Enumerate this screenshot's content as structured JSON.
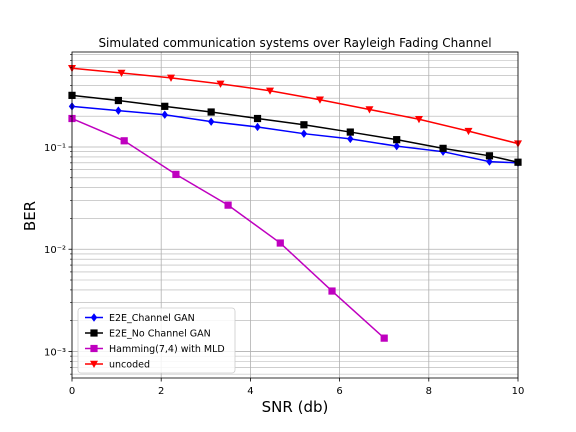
{
  "chart_data": {
    "type": "line",
    "title": "Simulated communication systems over Rayleigh Fading Channel",
    "xlabel": "SNR (db)",
    "ylabel": "BER",
    "xlim": [
      0,
      10
    ],
    "ylim": [
      0.00055,
      0.85
    ],
    "yscale": "log",
    "grid": true,
    "legend_position": "lower-left",
    "x_ticks": [
      0,
      2,
      4,
      6,
      8,
      10
    ],
    "x_tick_labels": [
      "0",
      "2",
      "4",
      "6",
      "8",
      "10"
    ],
    "y_ticks": [
      0.001,
      0.01,
      0.1
    ],
    "y_tick_labels": [
      "10⁻³",
      "10⁻²",
      "10⁻¹"
    ],
    "series": [
      {
        "name": "E2E_Channel GAN",
        "color": "#0000ff",
        "marker": "diamond",
        "x": [
          0,
          1.04,
          2.08,
          3.12,
          4.16,
          5.2,
          6.24,
          7.28,
          8.32,
          9.36,
          10
        ],
        "y": [
          0.25,
          0.227,
          0.207,
          0.177,
          0.157,
          0.135,
          0.12,
          0.102,
          0.09,
          0.072,
          0.07
        ]
      },
      {
        "name": "E2E_No Channel GAN",
        "color": "#000000",
        "marker": "square",
        "x": [
          0,
          1.04,
          2.08,
          3.12,
          4.16,
          5.2,
          6.24,
          7.28,
          8.32,
          9.36,
          10
        ],
        "y": [
          0.32,
          0.285,
          0.25,
          0.22,
          0.19,
          0.165,
          0.14,
          0.118,
          0.097,
          0.082,
          0.071
        ]
      },
      {
        "name": "Hamming(7,4) with MLD",
        "color": "#bf00bf",
        "marker": "square",
        "x": [
          0,
          1.17,
          2.33,
          3.5,
          4.67,
          5.83,
          7.0
        ],
        "y": [
          0.19,
          0.115,
          0.054,
          0.027,
          0.0115,
          0.0039,
          0.00135
        ]
      },
      {
        "name": "uncoded",
        "color": "#ff0000",
        "marker": "triangle-down",
        "x": [
          0,
          1.11,
          2.22,
          3.33,
          4.44,
          5.56,
          6.67,
          7.78,
          8.89,
          10
        ],
        "y": [
          0.59,
          0.53,
          0.475,
          0.415,
          0.355,
          0.29,
          0.233,
          0.187,
          0.143,
          0.108
        ]
      }
    ]
  }
}
